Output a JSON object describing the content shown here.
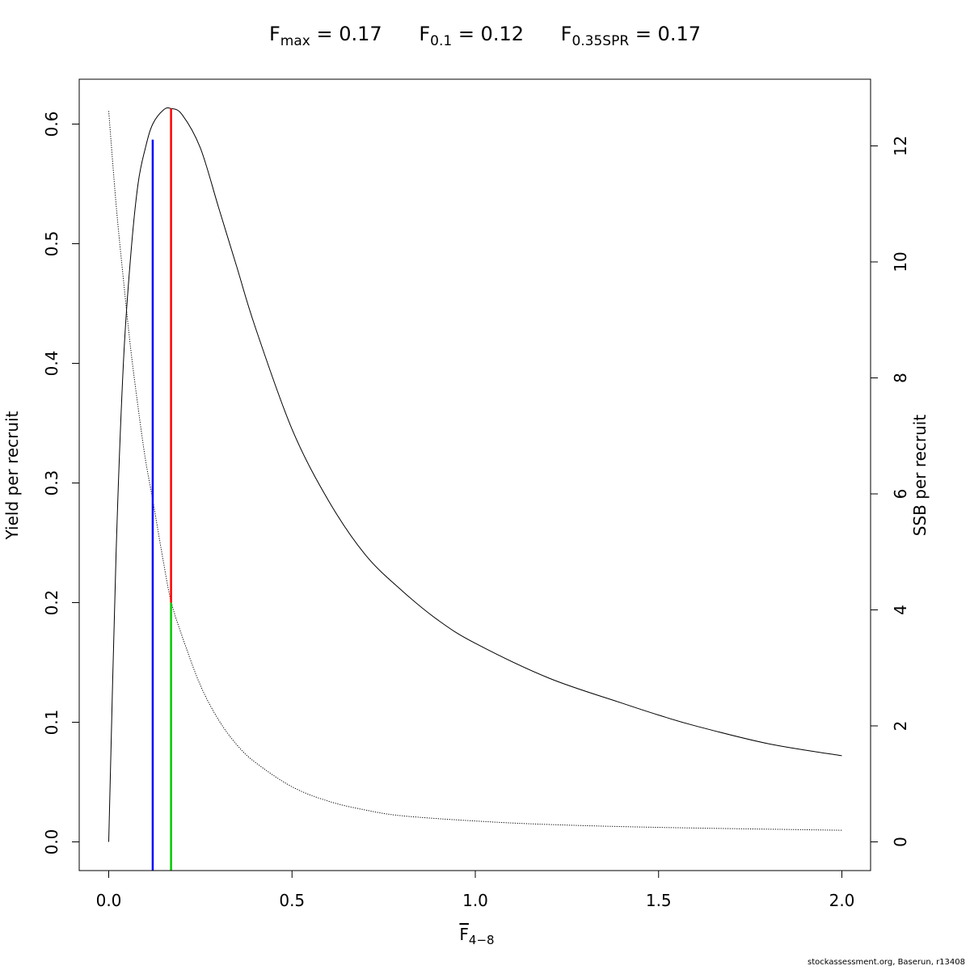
{
  "title": {
    "fmax_symbol": "F",
    "fmax_sub": "max",
    "fmax_value": "= 0.17",
    "f01_symbol": "F",
    "f01_sub": "0.1",
    "f01_value": "= 0.12",
    "fspr_symbol": "F",
    "fspr_sub": "0.35SPR",
    "fspr_value": "= 0.17"
  },
  "credit": "stockassessment.org, Baserun, r13408",
  "chart_data": {
    "type": "line",
    "xlabel": {
      "symbol": "F",
      "sub": "4−8"
    },
    "ylabel_left": "Yield per recruit",
    "ylabel_right": "SSB per recruit",
    "xlim": [
      0,
      2
    ],
    "ylim_left": [
      0,
      0.6
    ],
    "ylim_right": [
      0,
      12
    ],
    "x_ticks": [
      "0.0",
      "0.5",
      "1.0",
      "1.5",
      "2.0"
    ],
    "y_ticks_left": [
      "0.0",
      "0.1",
      "0.2",
      "0.3",
      "0.4",
      "0.5",
      "0.6"
    ],
    "y_ticks_right": [
      "0",
      "2",
      "4",
      "6",
      "8",
      "10",
      "12"
    ],
    "series": [
      {
        "axis": "left",
        "style": "solid",
        "color": "#000000",
        "x": [
          0,
          0.02,
          0.04,
          0.06,
          0.08,
          0.1,
          0.12,
          0.15,
          0.17,
          0.2,
          0.25,
          0.3,
          0.35,
          0.4,
          0.5,
          0.6,
          0.7,
          0.8,
          0.9,
          1.0,
          1.2,
          1.4,
          1.5,
          1.6,
          1.8,
          2.0
        ],
        "y": [
          0,
          0.24,
          0.4,
          0.49,
          0.55,
          0.58,
          0.6,
          0.612,
          0.613,
          0.608,
          0.58,
          0.53,
          0.48,
          0.43,
          0.345,
          0.285,
          0.24,
          0.21,
          0.185,
          0.166,
          0.137,
          0.116,
          0.106,
          0.097,
          0.082,
          0.072
        ]
      },
      {
        "axis": "right",
        "style": "dotted",
        "color": "#000000",
        "x": [
          0,
          0.02,
          0.04,
          0.06,
          0.08,
          0.1,
          0.12,
          0.15,
          0.17,
          0.2,
          0.25,
          0.3,
          0.35,
          0.4,
          0.5,
          0.6,
          0.7,
          0.8,
          1.0,
          1.2,
          1.5,
          2.0
        ],
        "y": [
          12.6,
          11.0,
          9.7,
          8.5,
          7.5,
          6.6,
          5.9,
          4.8,
          4.15,
          3.55,
          2.7,
          2.1,
          1.67,
          1.37,
          0.95,
          0.7,
          0.55,
          0.45,
          0.36,
          0.3,
          0.25,
          0.2
        ]
      }
    ],
    "reference_lines": [
      {
        "name": "F0.1",
        "x": 0.12,
        "y_top_left": 0.587,
        "y_bottom": "axis",
        "color": "#0000ff"
      },
      {
        "name": "Fmax",
        "x": 0.17,
        "y_top_left": 0.613,
        "y_bottom_left": 0.2,
        "color": "#ff0000"
      },
      {
        "name": "F0.35SPR",
        "x": 0.17,
        "y_top_left": 0.2,
        "y_bottom": "axis",
        "color": "#00cc00"
      }
    ]
  }
}
